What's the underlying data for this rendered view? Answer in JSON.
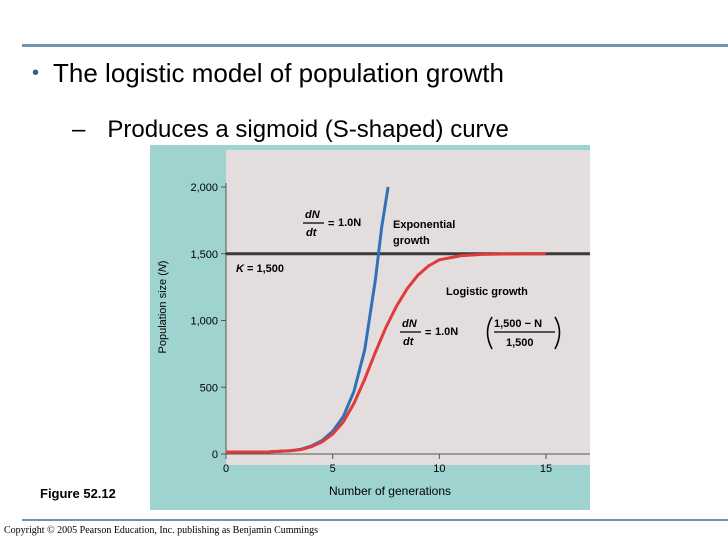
{
  "slide": {
    "bullet_text": "The logistic model of population growth",
    "sub_bullet_text": "Produces a sigmoid (S-shaped) curve",
    "figure_label": "Figure 52.12",
    "copyright": "Copyright © 2005 Pearson Education, Inc. publishing as Benjamin Cummings"
  },
  "colors": {
    "panel_bg": "#9fd3d0",
    "plot_bg": "#e3dedd",
    "exponential": "#2f73b6",
    "logistic": "#e03a3a",
    "k_line": "#3a3a3a",
    "rule": "#6f95b3"
  },
  "chart_data": {
    "type": "line",
    "xlabel": "Number of generations",
    "ylabel": "Population size (N)",
    "xlim": [
      0,
      16
    ],
    "ylim": [
      0,
      2100
    ],
    "x_ticks": [
      0,
      5,
      10,
      15
    ],
    "y_ticks": [
      0,
      500,
      1000,
      1500,
      2000
    ],
    "y_tick_labels": [
      "0",
      "500",
      "1,000",
      "1,500",
      "2,000"
    ],
    "grid": false,
    "carrying_capacity": {
      "value": 1500,
      "label": "K = 1,500"
    },
    "series": [
      {
        "name": "Exponential growth",
        "points": [
          [
            0,
            15
          ],
          [
            1,
            15
          ],
          [
            2,
            16
          ],
          [
            3,
            25
          ],
          [
            3.5,
            35
          ],
          [
            4,
            60
          ],
          [
            4.5,
            100
          ],
          [
            5,
            170
          ],
          [
            5.5,
            280
          ],
          [
            6,
            470
          ],
          [
            6.5,
            780
          ],
          [
            7,
            1300
          ],
          [
            7.3,
            1700
          ],
          [
            7.6,
            2000
          ]
        ]
      },
      {
        "name": "Logistic growth",
        "points": [
          [
            0,
            15
          ],
          [
            1,
            15
          ],
          [
            2,
            16
          ],
          [
            3,
            25
          ],
          [
            3.5,
            32
          ],
          [
            4,
            55
          ],
          [
            4.5,
            90
          ],
          [
            5,
            150
          ],
          [
            5.5,
            240
          ],
          [
            6,
            380
          ],
          [
            6.5,
            560
          ],
          [
            7,
            760
          ],
          [
            7.5,
            950
          ],
          [
            8,
            1110
          ],
          [
            8.5,
            1240
          ],
          [
            9,
            1340
          ],
          [
            9.5,
            1410
          ],
          [
            10,
            1455
          ],
          [
            11,
            1485
          ],
          [
            12,
            1495
          ],
          [
            13,
            1498
          ],
          [
            15,
            1500
          ]
        ]
      }
    ],
    "annotations": {
      "exp_eq": {
        "num": "dN",
        "den": "dt",
        "rhs": "1.0N"
      },
      "exp_label_line1": "Exponential",
      "exp_label_line2": "growth",
      "logistic_label": "Logistic growth",
      "log_eq": {
        "num": "dN",
        "den": "dt",
        "rhs": "1.0N",
        "frac_num": "1,500 − N",
        "frac_den": "1,500"
      }
    }
  }
}
